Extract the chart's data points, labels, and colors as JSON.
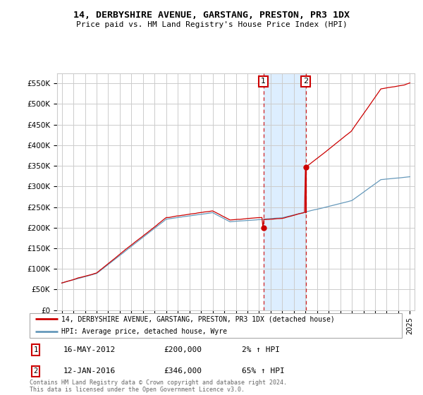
{
  "title": "14, DERBYSHIRE AVENUE, GARSTANG, PRESTON, PR3 1DX",
  "subtitle": "Price paid vs. HM Land Registry's House Price Index (HPI)",
  "ylabel_ticks": [
    "£0",
    "£50K",
    "£100K",
    "£150K",
    "£200K",
    "£250K",
    "£300K",
    "£350K",
    "£400K",
    "£450K",
    "£500K",
    "£550K"
  ],
  "ytick_values": [
    0,
    50000,
    100000,
    150000,
    200000,
    250000,
    300000,
    350000,
    400000,
    450000,
    500000,
    550000
  ],
  "ylim": [
    0,
    575000
  ],
  "xlim_start": 1994.6,
  "xlim_end": 2025.4,
  "ann1_x": 2012.37,
  "ann2_x": 2016.03,
  "ann1_price": 200000,
  "ann2_price": 346000,
  "ann1_label": "1",
  "ann2_label": "2",
  "ann1_date": "16-MAY-2012",
  "ann2_date": "12-JAN-2016",
  "ann1_pct": "2%",
  "ann2_pct": "65%",
  "legend_line1": "14, DERBYSHIRE AVENUE, GARSTANG, PRESTON, PR3 1DX (detached house)",
  "legend_line2": "HPI: Average price, detached house, Wyre",
  "footer": "Contains HM Land Registry data © Crown copyright and database right 2024.\nThis data is licensed under the Open Government Licence v3.0.",
  "red_color": "#cc0000",
  "blue_color": "#6699bb",
  "shade_color": "#ddeeff",
  "grid_color": "#cccccc",
  "bg_color": "#ffffff"
}
